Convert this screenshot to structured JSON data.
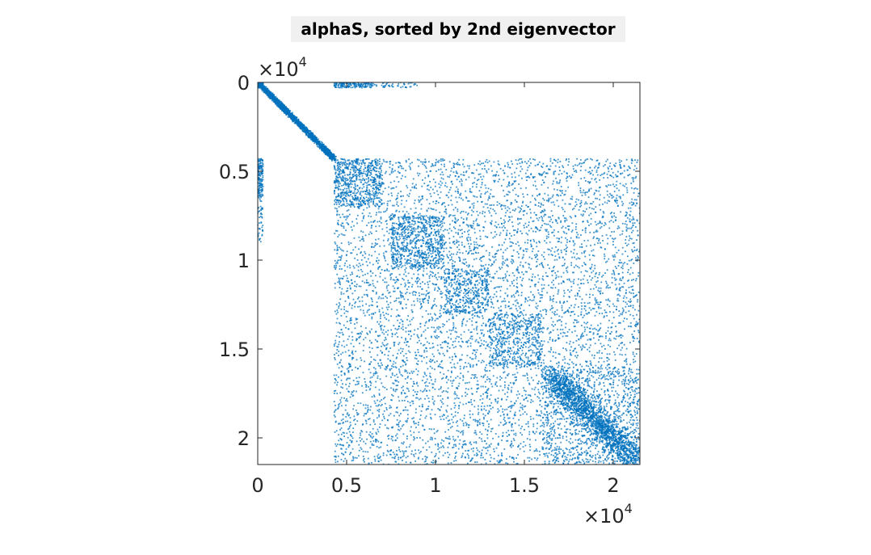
{
  "figure": {
    "background": "#ffffff"
  },
  "chart_data": {
    "type": "scatter",
    "title": "alphaS, sorted by 2nd eigenvector",
    "xlabel": "",
    "ylabel": "",
    "xlim": [
      0,
      21500
    ],
    "ylim": [
      0,
      21500
    ],
    "y_reversed": true,
    "x_axis_location": "bottom",
    "y_axis_location": "left",
    "grid": false,
    "box": true,
    "marker_color": "#0072bd",
    "x_ticks": [
      0,
      5000,
      10000,
      15000,
      20000
    ],
    "x_tick_labels": [
      "0",
      "0.5",
      "1",
      "1.5",
      "2"
    ],
    "y_ticks": [
      0,
      5000,
      10000,
      15000,
      20000
    ],
    "y_tick_labels": [
      "0",
      "0.5",
      "1",
      "1.5",
      "2"
    ],
    "x_exponent_label": "×10",
    "x_exponent": "4",
    "y_exponent_label": "×10",
    "y_exponent": "4",
    "description_of_pattern": {
      "diagonal_dense_block_small": [
        0,
        300
      ],
      "diagonal_band": [
        300,
        4300
      ],
      "dense_blocks": [
        [
          4300,
          7000
        ],
        [
          7500,
          10500
        ],
        [
          10500,
          13000
        ],
        [
          13000,
          16000
        ],
        [
          16000,
          21500
        ]
      ],
      "sparse_region": [
        4300,
        21500
      ],
      "isolated_strip_rows": [
        0,
        300
      ],
      "isolated_strip_cols": [
        0,
        300
      ]
    }
  }
}
